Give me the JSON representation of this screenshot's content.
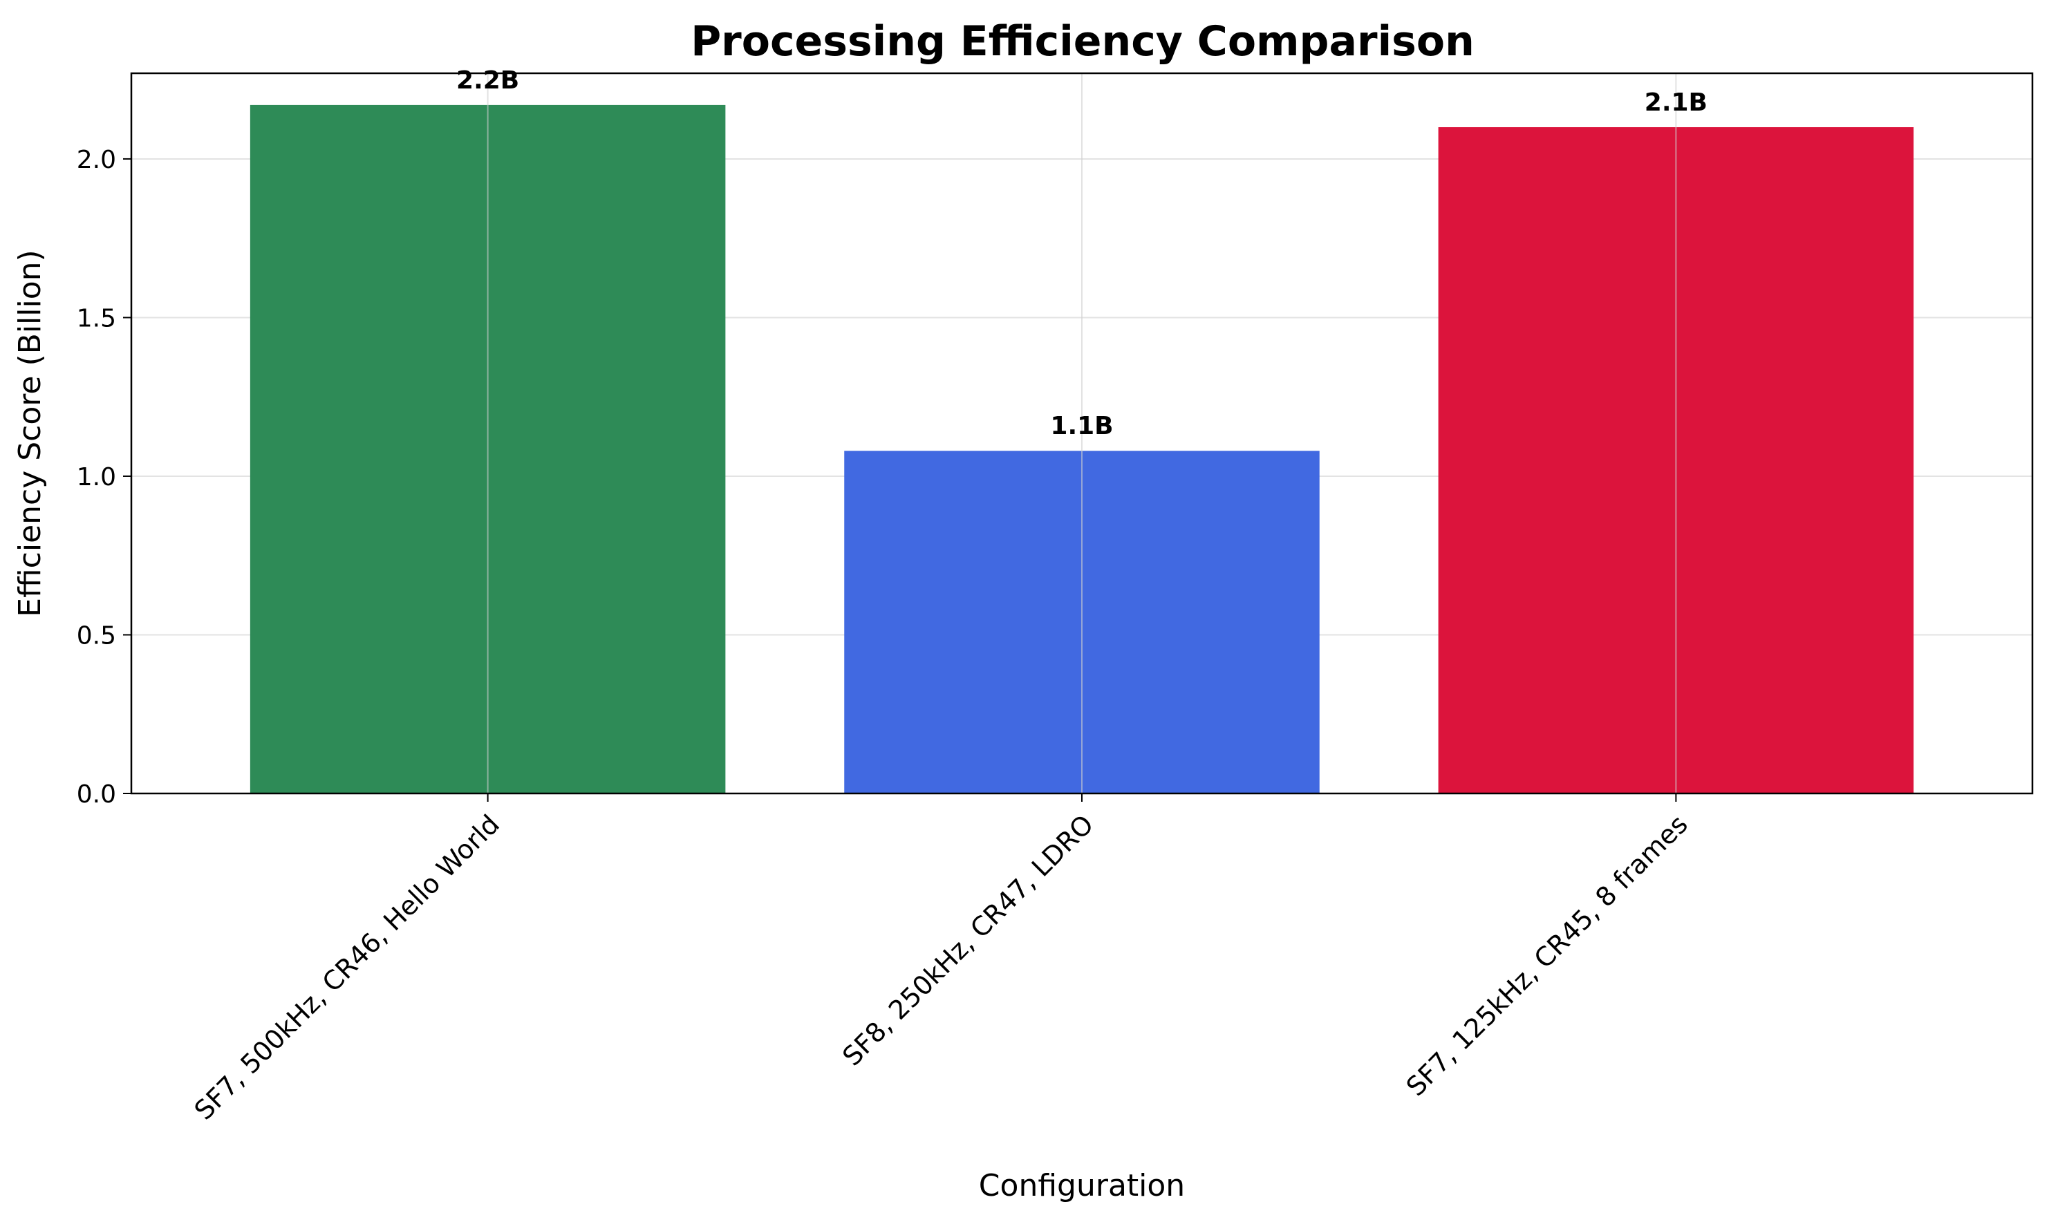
{
  "chart_data": {
    "type": "bar",
    "title": "Processing Efficiency Comparison",
    "xlabel": "Configuration",
    "ylabel": "Efficiency Score (Billion)",
    "categories": [
      "SF7, 500kHz, CR46, Hello World",
      "SF8, 250kHz, CR47, LDRO",
      "SF7, 125kHz, CR45, 8 frames"
    ],
    "values": [
      2.17,
      1.08,
      2.1
    ],
    "data_labels": [
      "2.2B",
      "1.1B",
      "2.1B"
    ],
    "colors": [
      "#2e8b57",
      "#4169e1",
      "#dc143c"
    ],
    "ylim": [
      0,
      2.27
    ],
    "yticks": [
      0.0,
      0.5,
      1.0,
      1.5,
      2.0
    ],
    "ytick_labels": [
      "0.0",
      "0.5",
      "1.0",
      "1.5",
      "2.0"
    ],
    "grid": true,
    "legend": "none"
  }
}
